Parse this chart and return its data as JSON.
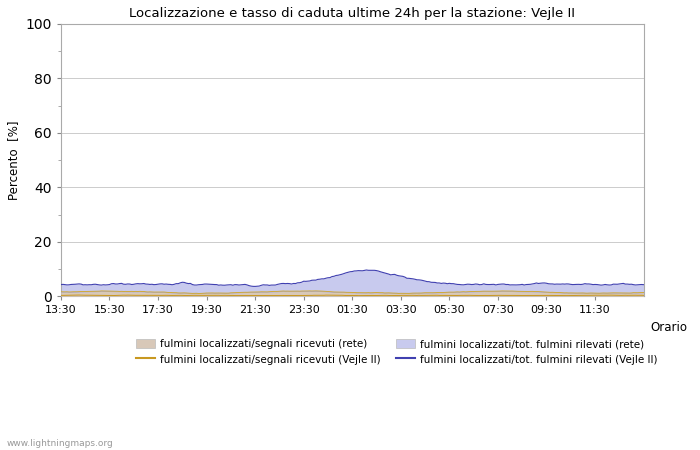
{
  "title": "Localizzazione e tasso di caduta ultime 24h per la stazione: Vejle II",
  "xlabel": "Orario",
  "ylabel": "Percento  [%]",
  "xlim": [
    0,
    96
  ],
  "ylim": [
    0,
    100
  ],
  "yticks": [
    0,
    20,
    40,
    60,
    80,
    100
  ],
  "ytick_minor": [
    10,
    30,
    50,
    70,
    90
  ],
  "xtick_labels": [
    "13:30",
    "15:30",
    "17:30",
    "19:30",
    "21:30",
    "23:30",
    "01:30",
    "03:30",
    "05:30",
    "07:30",
    "09:30",
    "11:30"
  ],
  "xtick_positions": [
    0,
    8,
    16,
    24,
    32,
    40,
    48,
    56,
    64,
    72,
    80,
    88
  ],
  "fill_rete_color": "#d8c8b8",
  "fill_vejle_color": "#c8caee",
  "line_rete_segnali_color": "#d4a820",
  "line_vejle_segnali_color": "#c89820",
  "line_rete_tot_color": "#a8aad8",
  "line_vejle_tot_color": "#4040b0",
  "bg_color": "#ffffff",
  "grid_color": "#cccccc",
  "watermark": "www.lightningmaps.org",
  "legend_labels": [
    "fulmini localizzati/segnali ricevuti (rete)",
    "fulmini localizzati/segnali ricevuti (Vejle II)",
    "fulmini localizzati/tot. fulmini rilevati (rete)",
    "fulmini localizzati/tot. fulmini rilevati (Vejle II)"
  ],
  "figsize": [
    7.0,
    4.5
  ],
  "dpi": 100
}
